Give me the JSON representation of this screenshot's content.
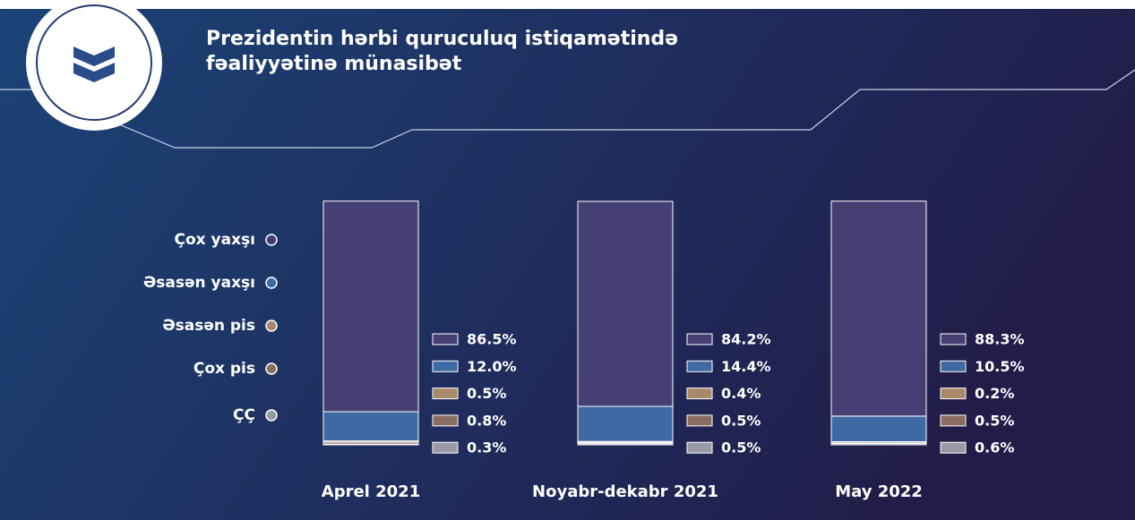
{
  "chart_data": {
    "type": "stacked_bar",
    "title": "Prezidentin hərbi quruculuq istiqamətində fəaliyyətinə münasibət",
    "categories": [
      "Aprel 2021",
      "Noyabr-dekabr 2021",
      "May 2022"
    ],
    "series": [
      {
        "name": "Çox yaxşı",
        "color": "#463f73",
        "values": [
          86.5,
          84.2,
          88.3
        ],
        "value_labels": [
          "86.5%",
          "84.2%",
          "88.3%"
        ]
      },
      {
        "name": "Əsasən yaxşı",
        "color": "#3f69a2",
        "values": [
          12.0,
          14.4,
          10.5
        ],
        "value_labels": [
          "12.0%",
          "14.4%",
          "10.5%"
        ]
      },
      {
        "name": "Əsasən pis",
        "color": "#a8896a",
        "values": [
          0.5,
          0.4,
          0.2
        ],
        "value_labels": [
          "0.5%",
          "0.4%",
          "0.2%"
        ]
      },
      {
        "name": "Çox pis",
        "color": "#8a6e62",
        "values": [
          0.8,
          0.5,
          0.5
        ],
        "value_labels": [
          "0.8%",
          "0.5%",
          "0.5%"
        ]
      },
      {
        "name": "ÇÇ",
        "color": "#9a9aa6",
        "values": [
          0.3,
          0.5,
          0.6
        ],
        "value_labels": [
          "0.3%",
          "0.5%",
          "0.6%"
        ]
      }
    ]
  }
}
